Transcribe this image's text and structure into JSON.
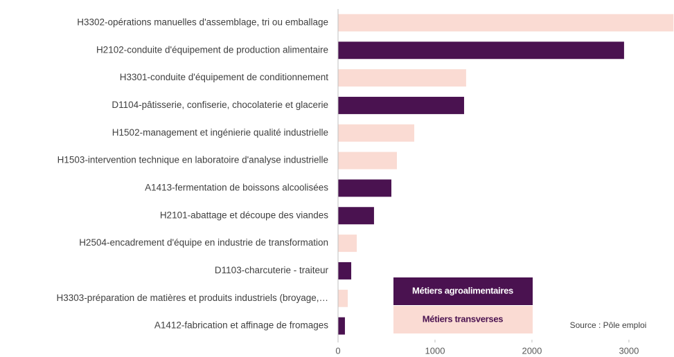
{
  "chart_data": {
    "type": "barh",
    "categories": [
      "H3302-opérations manuelles d'assemblage, tri ou emballage",
      "H2102-conduite d'équipement de production alimentaire",
      "H3301-conduite d'équipement de conditionnement",
      "D1104-pâtisserie, confiserie, chocolaterie et glacerie",
      "H1502-management et ingénierie qualité industrielle",
      "H1503-intervention technique en laboratoire d'analyse industrielle",
      "A1413-fermentation de boissons alcoolisées",
      "H2101-abattage et découpe des viandes",
      "H2504-encadrement d'équipe en industrie de transformation",
      "D1103-charcuterie - traiteur",
      "H3303-préparation de matières et produits industriels (broyage,…",
      "A1412-fabrication et affinage de fromages"
    ],
    "values": [
      3460,
      2950,
      1321,
      1300,
      786,
      607,
      550,
      371,
      193,
      136,
      100,
      71
    ],
    "bar_colors": [
      "#fadbd3",
      "#4a1250",
      "#fadbd3",
      "#4a1250",
      "#fadbd3",
      "#fadbd3",
      "#4a1250",
      "#4a1250",
      "#fadbd3",
      "#4a1250",
      "#fadbd3",
      "#4a1250"
    ],
    "legend": [
      {
        "name": "Métiers agroalimentaires",
        "color": "#4a1250",
        "text_color": "#ffffff"
      },
      {
        "name": "Métiers transverses",
        "color": "#fadbd3",
        "text_color": "#4a1250"
      }
    ],
    "source": "Source : Pôle emploi",
    "xlim": [
      0,
      3465
    ],
    "xticks": [
      0,
      1000,
      2000,
      3000
    ]
  }
}
